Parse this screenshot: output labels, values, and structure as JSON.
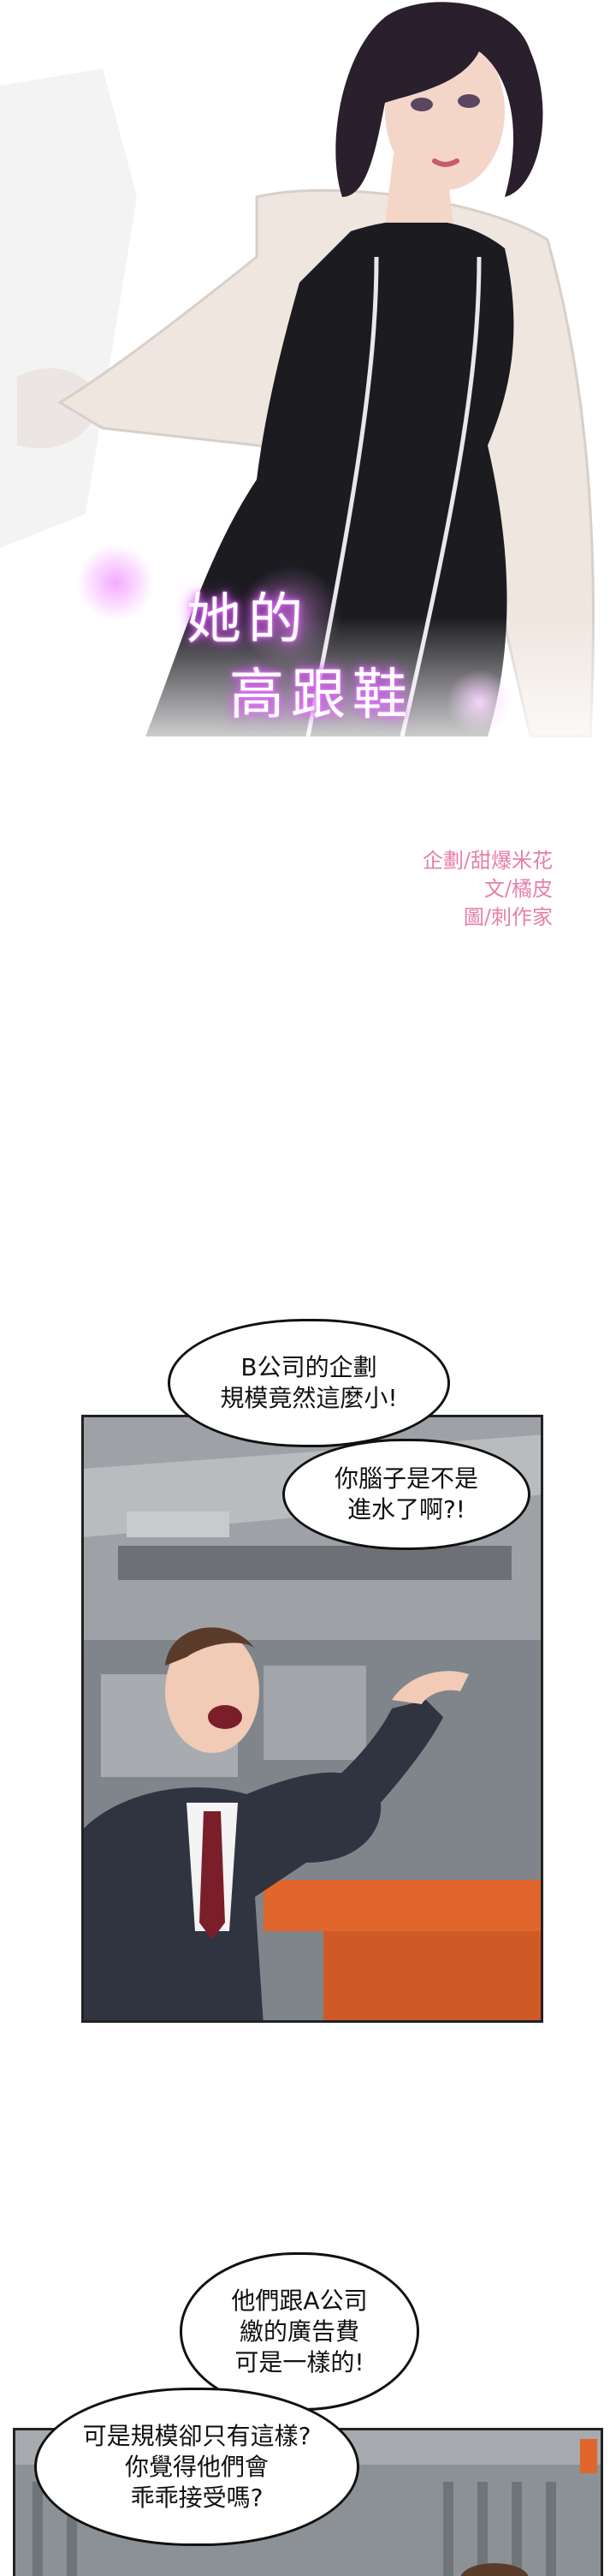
{
  "comic": {
    "title": "她的\n高跟鞋",
    "title_line1": "她的",
    "title_line2": "高跟鞋",
    "credits": {
      "line1": "企劃/甜爆米花",
      "line2": "文/橘皮",
      "line3": "圖/刺作家"
    }
  },
  "panel1": {
    "bubble_top": "B公司的企劃\n規模竟然這麼小!",
    "bubble_right": "你腦子是不是\n進水了啊?!"
  },
  "panel2": {
    "bubble_top": "他們跟A公司\n繳的廣告費\n可是一樣的!",
    "bubble_left": "可是規模卻只有這樣?\n你覺得他們會\n乖乖接受嗎?"
  },
  "colors": {
    "title_glow": "#e86cff",
    "credits": "#e87fa8",
    "dress": "#1b1b20",
    "jacket": "#efe6df",
    "hair": "#2a1f2c",
    "skin": "#f3d6c8",
    "suit": "#2f3440",
    "tie": "#7a1f2a",
    "orange_board": "#e0662d"
  }
}
